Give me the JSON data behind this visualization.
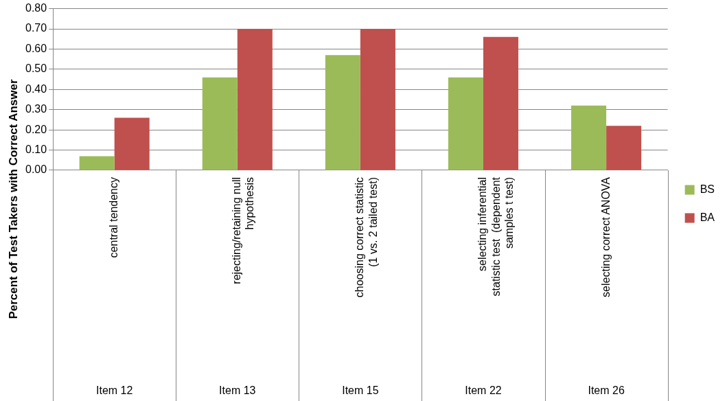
{
  "chart_data": {
    "type": "bar",
    "ylabel": "Percent of Test Takers with Correct Answer",
    "categories": [
      "central tendency",
      "rejecting/retaining null\nhypothesis",
      "choosing correct statistic\n(1 vs. 2 tailed test)",
      "selecting inferential\nstatistic test  (dependent\nsamples t test)",
      "selecting correct ANOVA"
    ],
    "series": [
      {
        "name": "BS",
        "color": "#9bbb59",
        "values": [
          0.07,
          0.46,
          0.57,
          0.46,
          0.32
        ]
      },
      {
        "name": "BA",
        "color": "#c0504d",
        "values": [
          0.26,
          0.7,
          0.7,
          0.66,
          0.22
        ]
      }
    ],
    "ylim": [
      0,
      0.8
    ],
    "yticks": [
      {
        "value": 0,
        "label": "0.00"
      },
      {
        "value": 0.1,
        "label": "0.10"
      },
      {
        "value": 0.2,
        "label": "0.20"
      },
      {
        "value": 0.3,
        "label": "0.30"
      },
      {
        "value": 0.4,
        "label": "0.40"
      },
      {
        "value": 0.5,
        "label": "0.50"
      },
      {
        "value": 0.6,
        "label": "0.60"
      },
      {
        "value": 0.7,
        "label": "0.70"
      },
      {
        "value": 0.8,
        "label": "0.80"
      }
    ],
    "grid": "y",
    "legend": "right",
    "annotations": [
      "Item 12",
      "Item 13",
      "Item 15",
      "Item 22",
      "Item 26"
    ]
  }
}
